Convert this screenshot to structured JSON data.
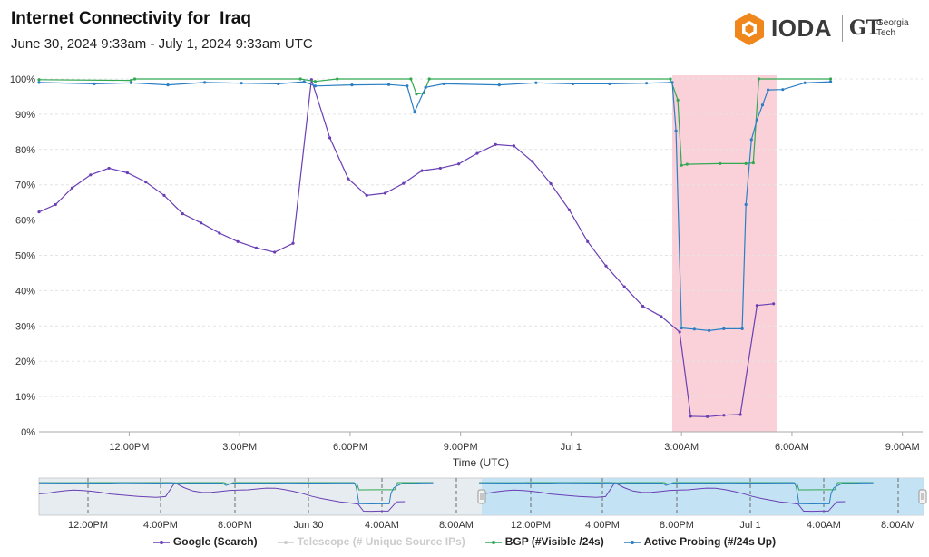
{
  "header": {
    "title": "Internet Connectivity for  Iraq",
    "subtitle": "June 30, 2024 9:33am - July 1, 2024 9:33am UTC"
  },
  "logo": {
    "name": "IODA",
    "partner_mark": "GT",
    "partner_name_line1": "Georgia",
    "partner_name_line2": "Tech"
  },
  "legend": [
    {
      "label": "Google (Search)",
      "color": "#6a3fb5",
      "enabled": true
    },
    {
      "label": "Telescope (# Unique Source IPs)",
      "color": "#cccccc",
      "enabled": false
    },
    {
      "label": "BGP (#Visible /24s)",
      "color": "#32a852",
      "enabled": true
    },
    {
      "label": "Active Probing (#/24s Up)",
      "color": "#2b7fc4",
      "enabled": true
    }
  ],
  "chart_data": [
    {
      "type": "line",
      "xlabel": "Time (UTC)",
      "ylabel": "",
      "x_range_hours": [
        0,
        24
      ],
      "ylim": [
        0,
        100
      ],
      "y_ticks": [
        "0%",
        "10%",
        "20%",
        "30%",
        "40%",
        "50%",
        "60%",
        "70%",
        "80%",
        "90%",
        "100%"
      ],
      "y_tick_values": [
        0,
        10,
        20,
        30,
        40,
        50,
        60,
        70,
        80,
        90,
        100
      ],
      "x_ticks": [
        "12:00PM",
        "3:00PM",
        "6:00PM",
        "9:00PM",
        "Jul 1",
        "3:00AM",
        "6:00AM",
        "9:00AM"
      ],
      "x_tick_hours": [
        2.45,
        5.45,
        8.45,
        11.45,
        14.45,
        17.45,
        20.45,
        23.45
      ],
      "grid": true,
      "highlight": {
        "x_start_hours": 17.2,
        "x_end_hours": 20.05,
        "color": "#f9c9d2"
      },
      "series": [
        {
          "name": "Google (Search)",
          "color": "#6a3fb5",
          "points": [
            [
              0.0,
              62.3
            ],
            [
              0.45,
              64.4
            ],
            [
              0.9,
              69.1
            ],
            [
              1.4,
              72.8
            ],
            [
              1.9,
              74.7
            ],
            [
              2.4,
              73.4
            ],
            [
              2.9,
              70.8
            ],
            [
              3.4,
              67.0
            ],
            [
              3.9,
              61.8
            ],
            [
              4.4,
              59.2
            ],
            [
              4.9,
              56.3
            ],
            [
              5.4,
              53.9
            ],
            [
              5.9,
              52.1
            ],
            [
              6.4,
              50.9
            ],
            [
              6.9,
              53.4
            ],
            [
              7.4,
              99.8
            ],
            [
              7.9,
              83.3
            ],
            [
              8.4,
              71.7
            ],
            [
              8.9,
              67.0
            ],
            [
              9.4,
              67.6
            ],
            [
              9.9,
              70.4
            ],
            [
              10.4,
              74.0
            ],
            [
              10.9,
              74.7
            ],
            [
              11.4,
              75.9
            ],
            [
              11.9,
              78.9
            ],
            [
              12.4,
              81.4
            ],
            [
              12.9,
              81.0
            ],
            [
              13.4,
              76.6
            ],
            [
              13.9,
              70.3
            ],
            [
              14.4,
              62.9
            ],
            [
              14.9,
              53.9
            ],
            [
              15.4,
              47.0
            ],
            [
              15.9,
              41.1
            ],
            [
              16.4,
              35.6
            ],
            [
              16.9,
              32.7
            ],
            [
              17.4,
              28.3
            ],
            [
              17.7,
              4.4
            ],
            [
              18.15,
              4.3
            ],
            [
              18.6,
              4.7
            ],
            [
              19.05,
              4.9
            ],
            [
              19.5,
              35.8
            ],
            [
              19.95,
              36.3
            ]
          ]
        },
        {
          "name": "BGP (#Visible /24s)",
          "color": "#32a852",
          "points": [
            [
              0.0,
              99.8
            ],
            [
              2.5,
              99.6
            ],
            [
              2.6,
              100.0
            ],
            [
              7.1,
              100.0
            ],
            [
              7.5,
              99.3
            ],
            [
              8.1,
              100.0
            ],
            [
              10.1,
              100.0
            ],
            [
              10.25,
              95.7
            ],
            [
              10.45,
              96.0
            ],
            [
              10.6,
              100.0
            ],
            [
              17.15,
              100.0
            ],
            [
              17.35,
              94.0
            ],
            [
              17.45,
              75.5
            ],
            [
              17.6,
              75.8
            ],
            [
              18.5,
              76.0
            ],
            [
              19.2,
              76.0
            ],
            [
              19.4,
              76.2
            ],
            [
              19.55,
              100.0
            ],
            [
              21.5,
              100.0
            ]
          ]
        },
        {
          "name": "Active Probing (#/24s Up)",
          "color": "#2b7fc4",
          "points": [
            [
              0.0,
              99.0
            ],
            [
              1.5,
              98.6
            ],
            [
              2.5,
              98.9
            ],
            [
              3.5,
              98.3
            ],
            [
              4.5,
              99.0
            ],
            [
              5.5,
              98.8
            ],
            [
              6.5,
              98.6
            ],
            [
              7.2,
              99.2
            ],
            [
              7.5,
              98.0
            ],
            [
              8.5,
              98.3
            ],
            [
              9.5,
              98.4
            ],
            [
              10.0,
              98.0
            ],
            [
              10.2,
              90.6
            ],
            [
              10.5,
              97.6
            ],
            [
              11.0,
              98.6
            ],
            [
              12.5,
              98.3
            ],
            [
              13.5,
              98.9
            ],
            [
              14.5,
              98.6
            ],
            [
              15.5,
              98.6
            ],
            [
              16.5,
              98.8
            ],
            [
              17.2,
              99.0
            ],
            [
              17.3,
              85.3
            ],
            [
              17.45,
              29.4
            ],
            [
              17.8,
              29.1
            ],
            [
              18.2,
              28.7
            ],
            [
              18.6,
              29.2
            ],
            [
              19.1,
              29.2
            ],
            [
              19.2,
              64.4
            ],
            [
              19.35,
              82.8
            ],
            [
              19.5,
              88.4
            ],
            [
              19.65,
              92.6
            ],
            [
              19.8,
              96.9
            ],
            [
              20.2,
              97.0
            ],
            [
              20.8,
              98.9
            ],
            [
              21.5,
              99.2
            ]
          ]
        }
      ]
    },
    {
      "type": "line",
      "role": "navigator",
      "x_ticks": [
        "12:00PM",
        "4:00PM",
        "8:00PM",
        "Jun 30",
        "4:00AM",
        "8:00AM",
        "12:00PM",
        "4:00PM",
        "8:00PM",
        "Jul 1",
        "4:00AM",
        "8:00AM"
      ],
      "selected_window": "June 30, 2024 9:33am - July 1, 2024 9:33am"
    }
  ]
}
